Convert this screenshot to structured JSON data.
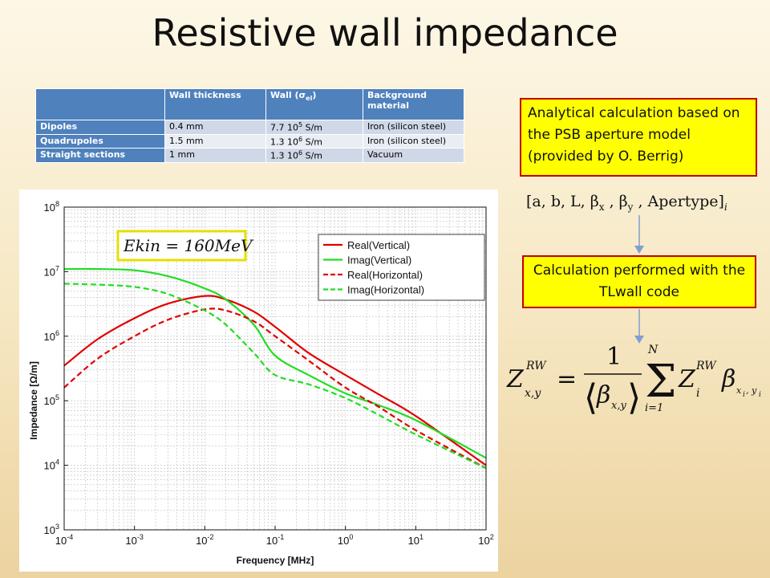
{
  "slide": {
    "title": "Resistive wall impedance"
  },
  "table": {
    "headers": [
      "",
      "Wall thickness",
      "Wall (σel)",
      "Background material"
    ],
    "rows": [
      {
        "name": "Dipoles",
        "thickness": "0.4 mm",
        "conductivity": "7.7 10^5 S/m",
        "material": "Iron (silicon steel)"
      },
      {
        "name": "Quadrupoles",
        "thickness": "1.5 mm",
        "conductivity": "1.3 10^6 S/m",
        "material": "Iron (silicon steel)"
      },
      {
        "name": "Straight sections",
        "thickness": "1 mm",
        "conductivity": "1.3 10^6 S/m",
        "material": "Vacuum"
      }
    ]
  },
  "boxes": {
    "analytical": "Analytical calculation based on the PSB aperture model (provided by O. Berrig)",
    "tlwall": "Calculation performed with the TLwall code"
  },
  "params_text": "[a, b, L, βx , βy , Apertype]i",
  "formula_text": "Z x,y RW = 1 / ⟨β x,y⟩ Σ i=1..N Z i RW β xi,yi",
  "colors": {
    "box_fill": "#ffff00",
    "box_border": "#c00000",
    "table_header": "#4f81bd",
    "arrow": "#7f9fd0",
    "real": "#e00000",
    "imag": "#22dd22"
  },
  "chart_data": {
    "type": "line",
    "xlabel": "Frequency [MHz]",
    "ylabel": "Impedance [Ω/m]",
    "xscale": "log",
    "yscale": "log",
    "xlim": [
      0.0001,
      100
    ],
    "ylim": [
      1000,
      100000000
    ],
    "grid": true,
    "legend_position": "top-right",
    "annotation": "E_kin = 160MeV",
    "x_ticks": [
      "10^-4",
      "10^-3",
      "10^-2",
      "10^-1",
      "10^0",
      "10^1",
      "10^2"
    ],
    "y_ticks": [
      "10^3",
      "10^4",
      "10^5",
      "10^6",
      "10^7",
      "10^8"
    ],
    "series": [
      {
        "name": "Real(Vertical)",
        "color": "#e00000",
        "dash": "solid",
        "x": [
          0.0001,
          0.0003,
          0.001,
          0.003,
          0.01,
          0.02,
          0.05,
          0.1,
          0.3,
          1,
          3,
          10,
          100
        ],
        "y": [
          350000,
          900000,
          1900000,
          3200000,
          4200000,
          3700000,
          2400000,
          1400000,
          550000,
          250000,
          125000,
          58000,
          10000
        ]
      },
      {
        "name": "Imag(Vertical)",
        "color": "#22dd22",
        "dash": "solid",
        "x": [
          0.0001,
          0.0003,
          0.001,
          0.003,
          0.01,
          0.02,
          0.05,
          0.1,
          0.3,
          1,
          3,
          10,
          100
        ],
        "y": [
          11000000,
          11000000,
          10500000,
          8500000,
          5500000,
          3700000,
          1500000,
          500000,
          250000,
          130000,
          85000,
          50000,
          13000
        ]
      },
      {
        "name": "Real(Horizontal)",
        "color": "#e00000",
        "dash": "dashed",
        "x": [
          0.0001,
          0.0003,
          0.001,
          0.003,
          0.01,
          0.02,
          0.05,
          0.1,
          0.3,
          1,
          3,
          10,
          100
        ],
        "y": [
          160000,
          450000,
          1000000,
          1800000,
          2600000,
          2500000,
          1700000,
          1000000,
          420000,
          160000,
          80000,
          35000,
          9000
        ]
      },
      {
        "name": "Imag(Horizontal)",
        "color": "#22dd22",
        "dash": "dashed",
        "x": [
          0.0001,
          0.0003,
          0.001,
          0.003,
          0.01,
          0.02,
          0.05,
          0.1,
          0.3,
          1,
          3,
          10,
          100
        ],
        "y": [
          6500000,
          6300000,
          5800000,
          4500000,
          2500000,
          1500000,
          550000,
          250000,
          180000,
          110000,
          60000,
          30000,
          9000
        ]
      }
    ]
  }
}
